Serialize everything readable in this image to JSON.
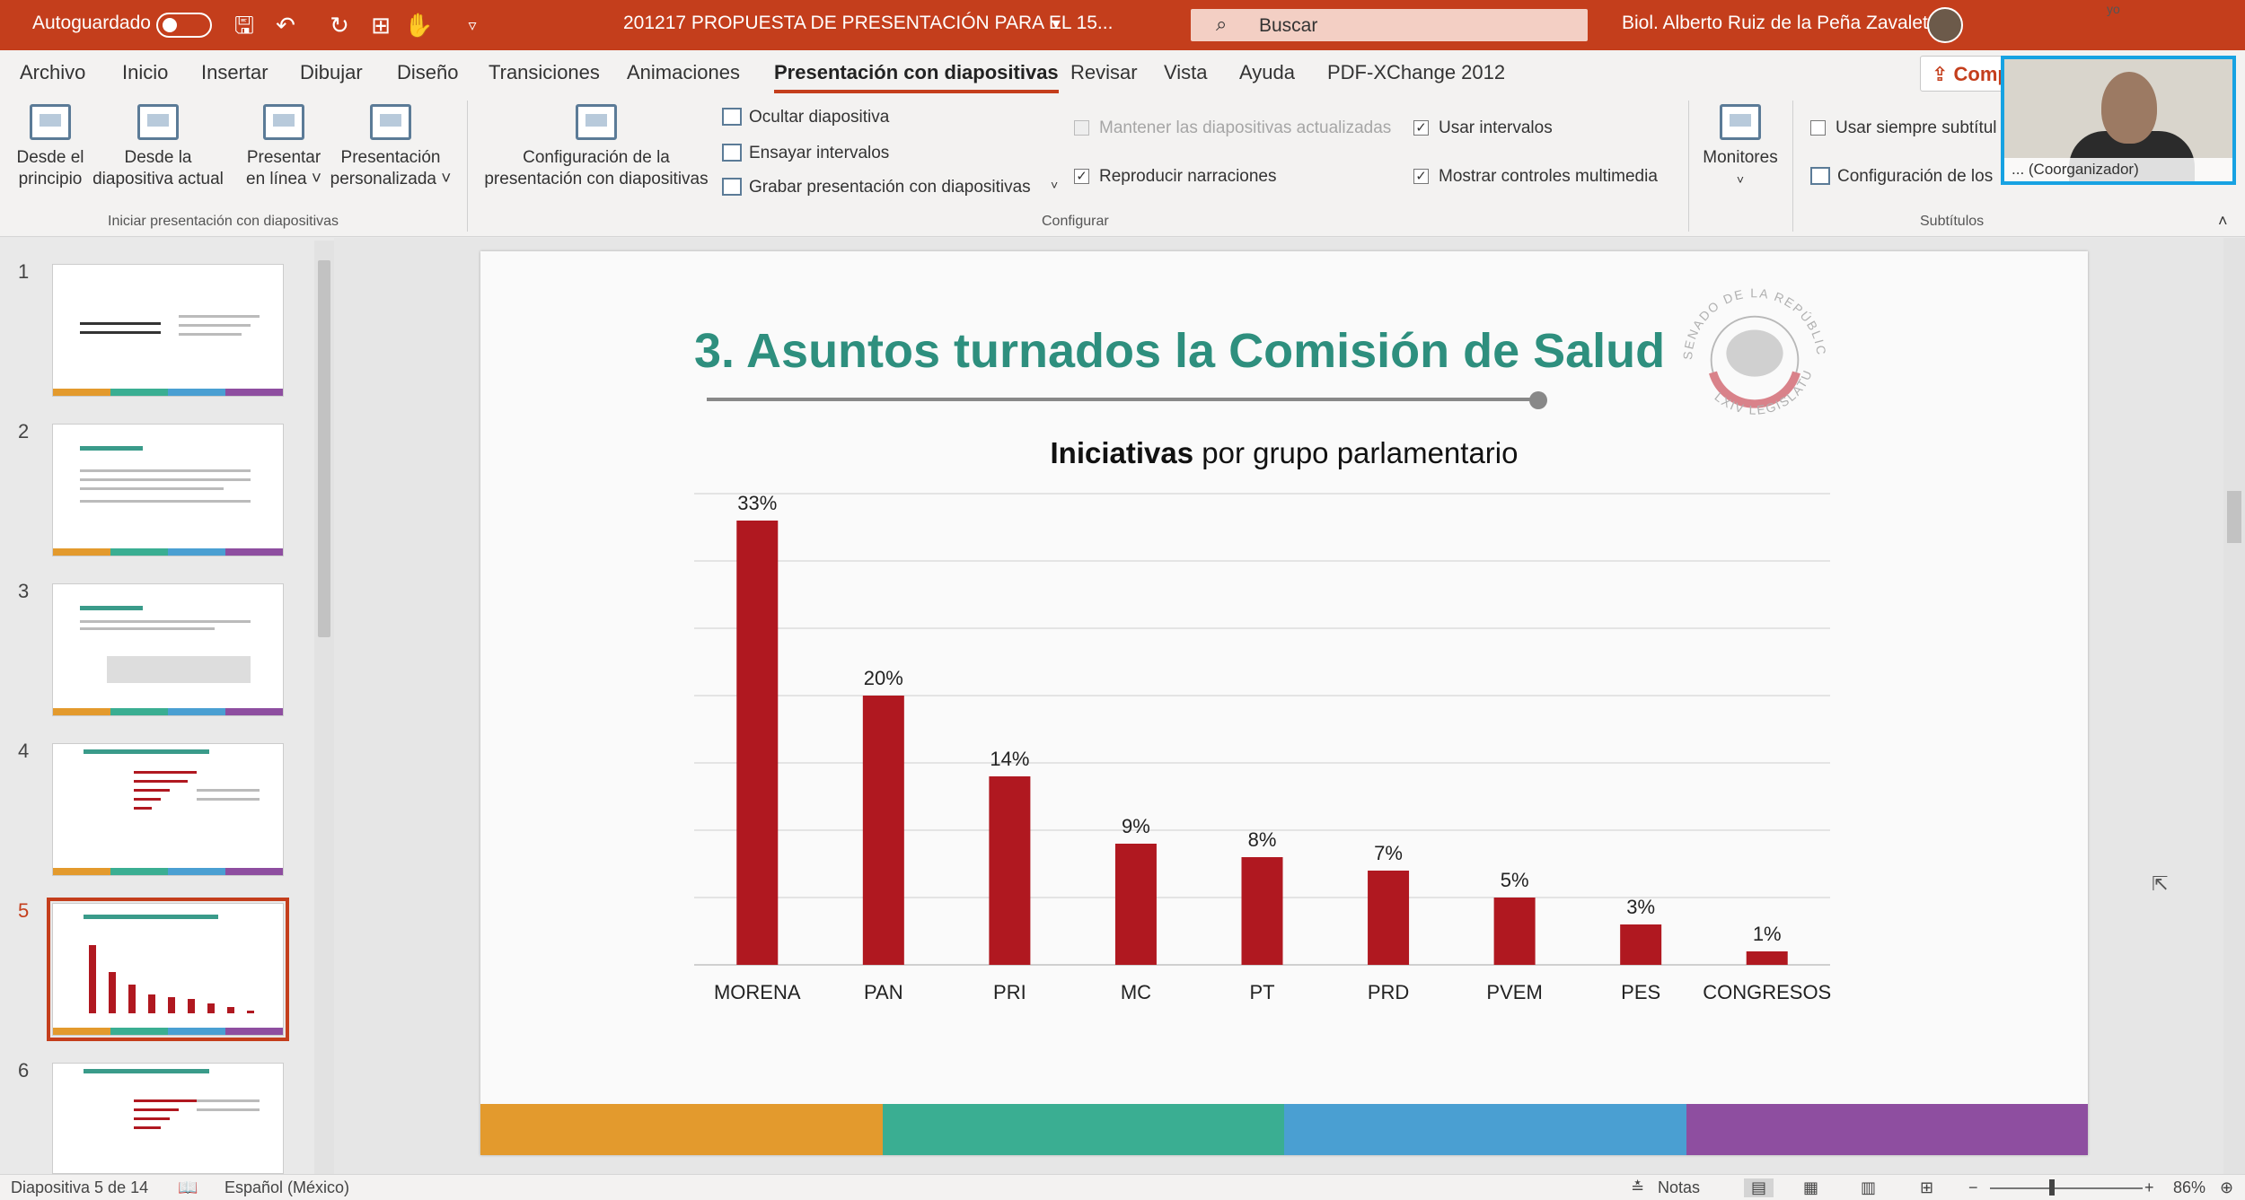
{
  "titlebar": {
    "autosave_label": "Autoguardado",
    "doc_title": "201217 PROPUESTA DE PRESENTACIÓN PARA EL 15...",
    "search_placeholder": "Buscar",
    "user_name": "Biol. Alberto Ruiz de la Peña Zavaleta",
    "accent_color": "#c43e1c"
  },
  "menu": {
    "tabs": [
      "Archivo",
      "Inicio",
      "Insertar",
      "Dibujar",
      "Diseño",
      "Transiciones",
      "Animaciones",
      "Presentación con diapositivas",
      "Revisar",
      "Vista",
      "Ayuda",
      "PDF-XChange 2012"
    ],
    "active_tab": "Presentación con diapositivas",
    "share_label": "Comp"
  },
  "ribbon": {
    "group_start": {
      "label": "Iniciar presentación con diapositivas",
      "from_start": [
        "Desde el",
        "principio"
      ],
      "from_current": [
        "Desde la",
        "diapositiva actual"
      ],
      "present_online": [
        "Presentar",
        "en línea ˅"
      ],
      "custom_show": [
        "Presentación",
        "personalizada ˅"
      ]
    },
    "group_config": {
      "label": "Configurar",
      "setup": [
        "Configuración de la",
        "presentación con diapositivas"
      ],
      "hide_slide": "Ocultar diapositiva",
      "rehearse": "Ensayar intervalos",
      "record": "Grabar presentación con diapositivas",
      "keep_updated": "Mantener las diapositivas actualizadas",
      "use_timings": "Usar intervalos",
      "play_narrations": "Reproducir narraciones",
      "show_media_controls": "Mostrar controles multimedia"
    },
    "monitors": {
      "label": "Monitores"
    },
    "group_subtitles": {
      "label": "Subtítulos",
      "always_use": "Usar siempre subtítul",
      "settings": "Configuración de los"
    }
  },
  "webcam": {
    "caption": "... (Coorganizador)",
    "self_label": "yo"
  },
  "thumbnails": {
    "numbers": [
      "1",
      "2",
      "3",
      "4",
      "5",
      "6"
    ],
    "selected_index": 4
  },
  "slide": {
    "title": "3. Asuntos turnados la Comisión de Salud",
    "chart_heading_bold": "Iniciativas",
    "chart_heading_rest": "por grupo parlamentario",
    "seal": {
      "top_text": "SENADO DE LA REPÚBLICA",
      "bottom_text": "LXIV LEGISLATURA"
    },
    "bottom_colors": [
      "#e39a2d",
      "#3aae92",
      "#4a9fd2",
      "#8e4ea0"
    ]
  },
  "chart_data": {
    "type": "bar",
    "title": "Iniciativas por grupo parlamentario",
    "categories": [
      "MORENA",
      "PAN",
      "PRI",
      "MC",
      "PT",
      "PRD",
      "PVEM",
      "PES",
      "CONGRESOS"
    ],
    "values": [
      33,
      20,
      14,
      9,
      8,
      7,
      5,
      3,
      1
    ],
    "value_labels": [
      "33%",
      "20%",
      "14%",
      "9%",
      "8%",
      "7%",
      "5%",
      "3%",
      "1%"
    ],
    "ylim": [
      0,
      35
    ],
    "gridlines": [
      5,
      10,
      15,
      20,
      25,
      30,
      35
    ],
    "grid": true,
    "bar_color": "#b01820"
  },
  "statusbar": {
    "slide_info": "Diapositiva 5 de 14",
    "language": "Español (México)",
    "notes": "Notas",
    "zoom": "86%"
  }
}
